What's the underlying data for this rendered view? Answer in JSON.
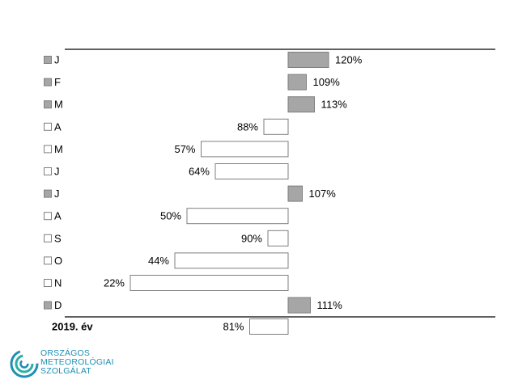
{
  "chart_data": {
    "type": "bar",
    "orientation": "horizontal",
    "baseline": 100,
    "unit": "%",
    "categories": [
      "J",
      "F",
      "M",
      "A",
      "M",
      "J",
      "J",
      "A",
      "S",
      "O",
      "N",
      "D"
    ],
    "values": [
      120,
      109,
      113,
      88,
      57,
      64,
      107,
      50,
      90,
      44,
      22,
      111
    ],
    "value_labels": [
      "120%",
      "109%",
      "113%",
      "88%",
      "57%",
      "64%",
      "107%",
      "50%",
      "90%",
      "44%",
      "22%",
      "111%"
    ],
    "summary": {
      "label": "2019. év",
      "value": 81,
      "value_label": "81%"
    },
    "colors": {
      "above": "#a6a6a6",
      "below": "#ffffff",
      "outline": "#7f7f7f"
    },
    "legend_markers": [
      "filled",
      "filled",
      "filled",
      "hollow",
      "hollow",
      "hollow",
      "filled",
      "hollow",
      "hollow",
      "hollow",
      "hollow",
      "filled"
    ]
  },
  "logo": {
    "lines": [
      "ORSZÁGOS",
      "METEOROLÓGIAI",
      "SZOLGÁLAT"
    ],
    "color": "#1e8fb5"
  }
}
